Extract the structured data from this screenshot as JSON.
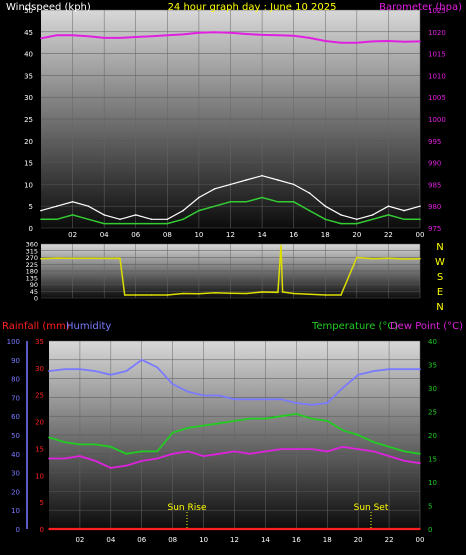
{
  "header": {
    "left_label": "Windspeed (kph)",
    "title": "24 hour graph day : June 10 2025",
    "right_label": "Barometer (hpa)"
  },
  "middle": {
    "compass": [
      "N",
      "W",
      "S",
      "E",
      "N"
    ]
  },
  "bottom_header": {
    "rain_label": "Rainfall (mm)",
    "humidity_label": "Humidity",
    "temp_label": "Temperature (°C)",
    "dew_label": "Dew Point (°C)"
  },
  "annotations": {
    "sunrise": "Sun Rise",
    "sunset": "Sun Set"
  },
  "colors": {
    "wind": "#ffffff",
    "wind_avg": "#33cc33",
    "barometer": "#e020e0",
    "direction": "#dddd00",
    "humidity": "#7a7aff",
    "temperature": "#22cc22",
    "dew_point": "#dd22dd",
    "rain": "#ff2020",
    "header_text": "#ffff00"
  },
  "chart_data": [
    {
      "type": "line",
      "name": "wind-barometer",
      "x": [
        0,
        1,
        2,
        3,
        4,
        5,
        6,
        7,
        8,
        9,
        10,
        11,
        12,
        13,
        14,
        15,
        16,
        17,
        18,
        19,
        20,
        21,
        22,
        23,
        24
      ],
      "x_tick_labels": [
        "02",
        "04",
        "06",
        "08",
        "10",
        "12",
        "14",
        "16",
        "18",
        "20",
        "22",
        "00"
      ],
      "left_axis": {
        "label": "Windspeed (kph)",
        "ylim": [
          0,
          50
        ],
        "ticks": [
          0,
          5,
          10,
          15,
          20,
          25,
          30,
          35,
          40,
          45,
          50
        ]
      },
      "right_axis": {
        "label": "Barometer (hpa)",
        "ylim": [
          975,
          1025
        ],
        "ticks": [
          975,
          980,
          985,
          990,
          995,
          1000,
          1005,
          1010,
          1015,
          1020,
          1025
        ]
      },
      "series": [
        {
          "values": [
            4,
            5,
            6,
            5,
            3,
            2,
            3,
            2,
            2,
            4,
            7,
            9,
            10,
            11,
            12,
            11,
            10,
            8,
            5,
            3,
            2,
            3,
            5,
            4,
            5
          ]
        },
        {
          "values": [
            2,
            2,
            3,
            2,
            1,
            1,
            1,
            1,
            1,
            2,
            4,
            5,
            6,
            6,
            7,
            6,
            6,
            4,
            2,
            1,
            1,
            2,
            3,
            2,
            2
          ]
        },
        {
          "values": [
            1018.5,
            1019.2,
            1019.2,
            1019.0,
            1018.6,
            1018.6,
            1018.8,
            1019.0,
            1019.2,
            1019.4,
            1019.8,
            1019.9,
            1019.8,
            1019.5,
            1019.3,
            1019.2,
            1019.1,
            1018.6,
            1017.9,
            1017.5,
            1017.5,
            1017.8,
            1017.9,
            1017.7,
            1017.8
          ]
        }
      ]
    },
    {
      "type": "line",
      "name": "wind-direction",
      "x": [
        0,
        1,
        2,
        3,
        4,
        5,
        5.3,
        6,
        7,
        8,
        9,
        10,
        11,
        12,
        13,
        14,
        15,
        15.2,
        15.3,
        16,
        17,
        18,
        19,
        20,
        21,
        22,
        23,
        24
      ],
      "left_axis": {
        "ylim": [
          0,
          360
        ],
        "ticks": [
          0,
          45,
          90,
          135,
          180,
          225,
          270,
          315,
          360
        ]
      },
      "series": [
        {
          "values": [
            262,
            266,
            264,
            265,
            264,
            265,
            20,
            20,
            20,
            20,
            30,
            28,
            35,
            32,
            30,
            40,
            38,
            350,
            40,
            30,
            25,
            20,
            20,
            270,
            262,
            265,
            260,
            262
          ]
        }
      ]
    },
    {
      "type": "line",
      "name": "temp-humidity",
      "x": [
        0,
        1,
        2,
        3,
        4,
        5,
        6,
        7,
        8,
        9,
        10,
        11,
        12,
        13,
        14,
        15,
        16,
        17,
        18,
        19,
        20,
        21,
        22,
        23,
        24
      ],
      "left_axis": {
        "label": "Humidity",
        "ylim": [
          0,
          100
        ],
        "ticks": [
          0,
          10,
          20,
          30,
          40,
          50,
          60,
          70,
          80,
          90,
          100
        ]
      },
      "rain_axis": {
        "label": "Rainfall (mm)",
        "ylim": [
          0,
          35
        ],
        "ticks": [
          0,
          5,
          10,
          15,
          20,
          25,
          30,
          35
        ]
      },
      "right_axis": {
        "label": "Temperature (°C)",
        "ylim": [
          0,
          40
        ],
        "ticks": [
          0,
          5,
          10,
          15,
          20,
          25,
          30,
          35,
          40
        ]
      },
      "series": [
        {
          "values": [
            84,
            85,
            85,
            84,
            82,
            84,
            90,
            86,
            77,
            73,
            71,
            71,
            69,
            69,
            69,
            69,
            67,
            66,
            67,
            75,
            82,
            84,
            85,
            85,
            85
          ]
        },
        {
          "values": [
            19.5,
            18.5,
            18.0,
            18.0,
            17.5,
            16.0,
            16.5,
            16.5,
            20.5,
            21.5,
            22.0,
            22.5,
            23.0,
            23.5,
            23.5,
            24.0,
            24.5,
            23.5,
            23.0,
            21.0,
            20.0,
            18.5,
            17.5,
            16.5,
            16.0
          ]
        },
        {
          "values": [
            15.0,
            15.0,
            15.5,
            14.5,
            13.0,
            13.5,
            14.5,
            15.0,
            16.0,
            16.5,
            15.5,
            16.0,
            16.5,
            16.0,
            16.5,
            17.0,
            17.0,
            17.0,
            16.5,
            17.5,
            17.0,
            16.5,
            15.5,
            14.5,
            14.0
          ]
        },
        {
          "values": [
            0,
            0,
            0,
            0,
            0,
            0,
            0,
            0,
            0,
            0,
            0,
            0,
            0,
            0,
            0,
            0,
            0,
            0,
            0,
            0,
            0,
            0,
            0,
            0,
            0
          ]
        }
      ]
    }
  ]
}
